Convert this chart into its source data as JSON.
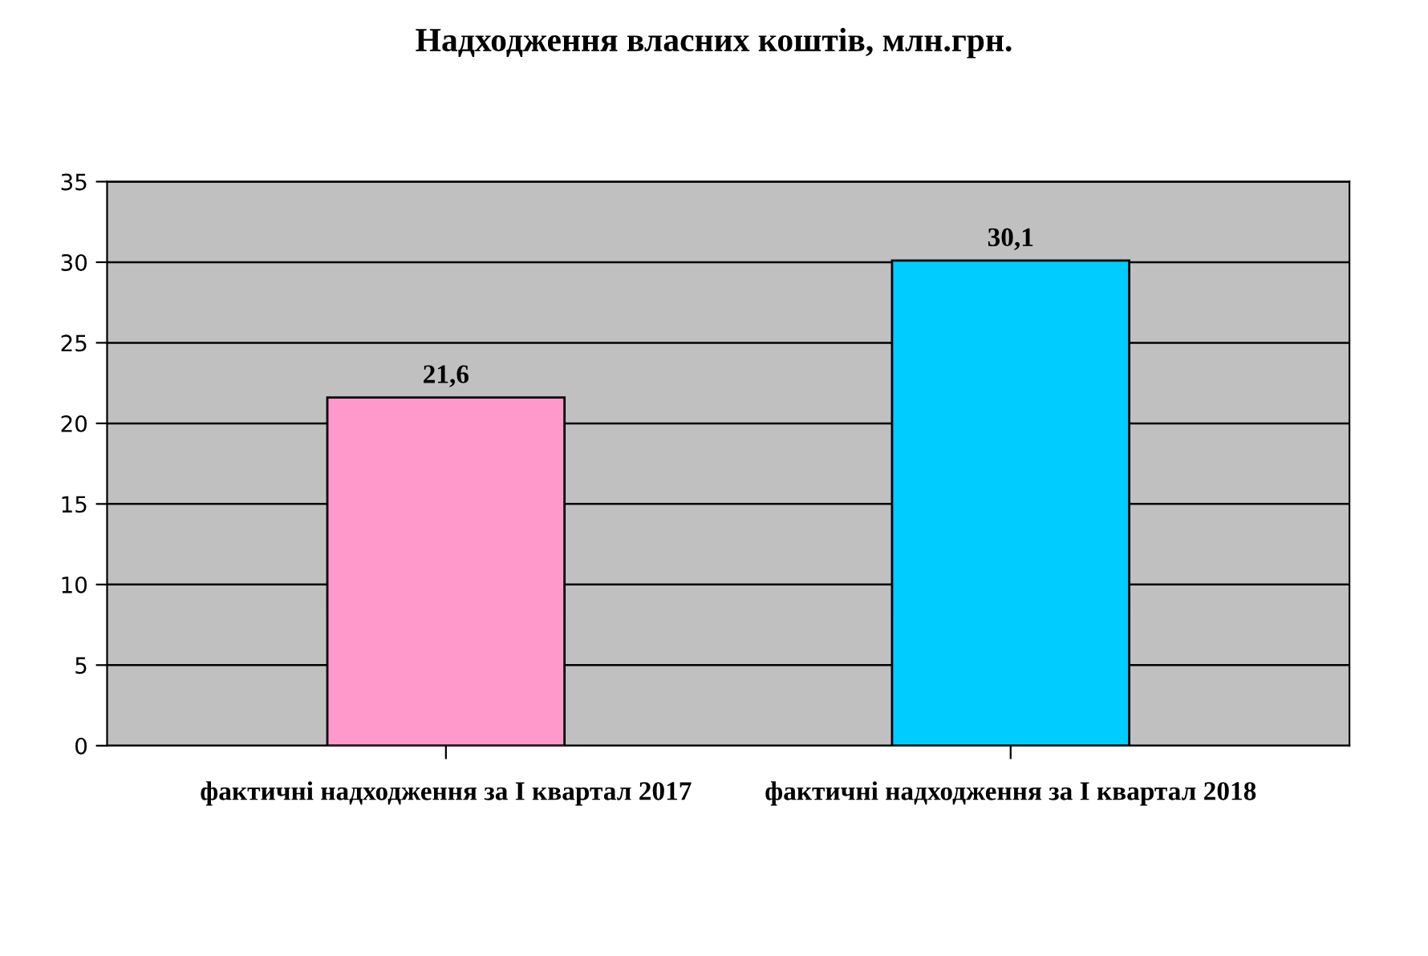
{
  "chart_data": {
    "type": "bar",
    "title": "Надходження власних коштів, млн.грн.",
    "categories": [
      "фактичні надходження за І квартал 2017",
      "фактичні надходження за І квартал 2018"
    ],
    "values": [
      21.6,
      30.1
    ],
    "colors": [
      "#ff99cc",
      "#00ccff"
    ],
    "value_labels": [
      "21,6",
      "30,1"
    ],
    "ylim": [
      0,
      35
    ],
    "yticks": [
      0,
      5,
      10,
      15,
      20,
      25,
      30,
      35
    ],
    "grid": "y",
    "legend": false
  }
}
